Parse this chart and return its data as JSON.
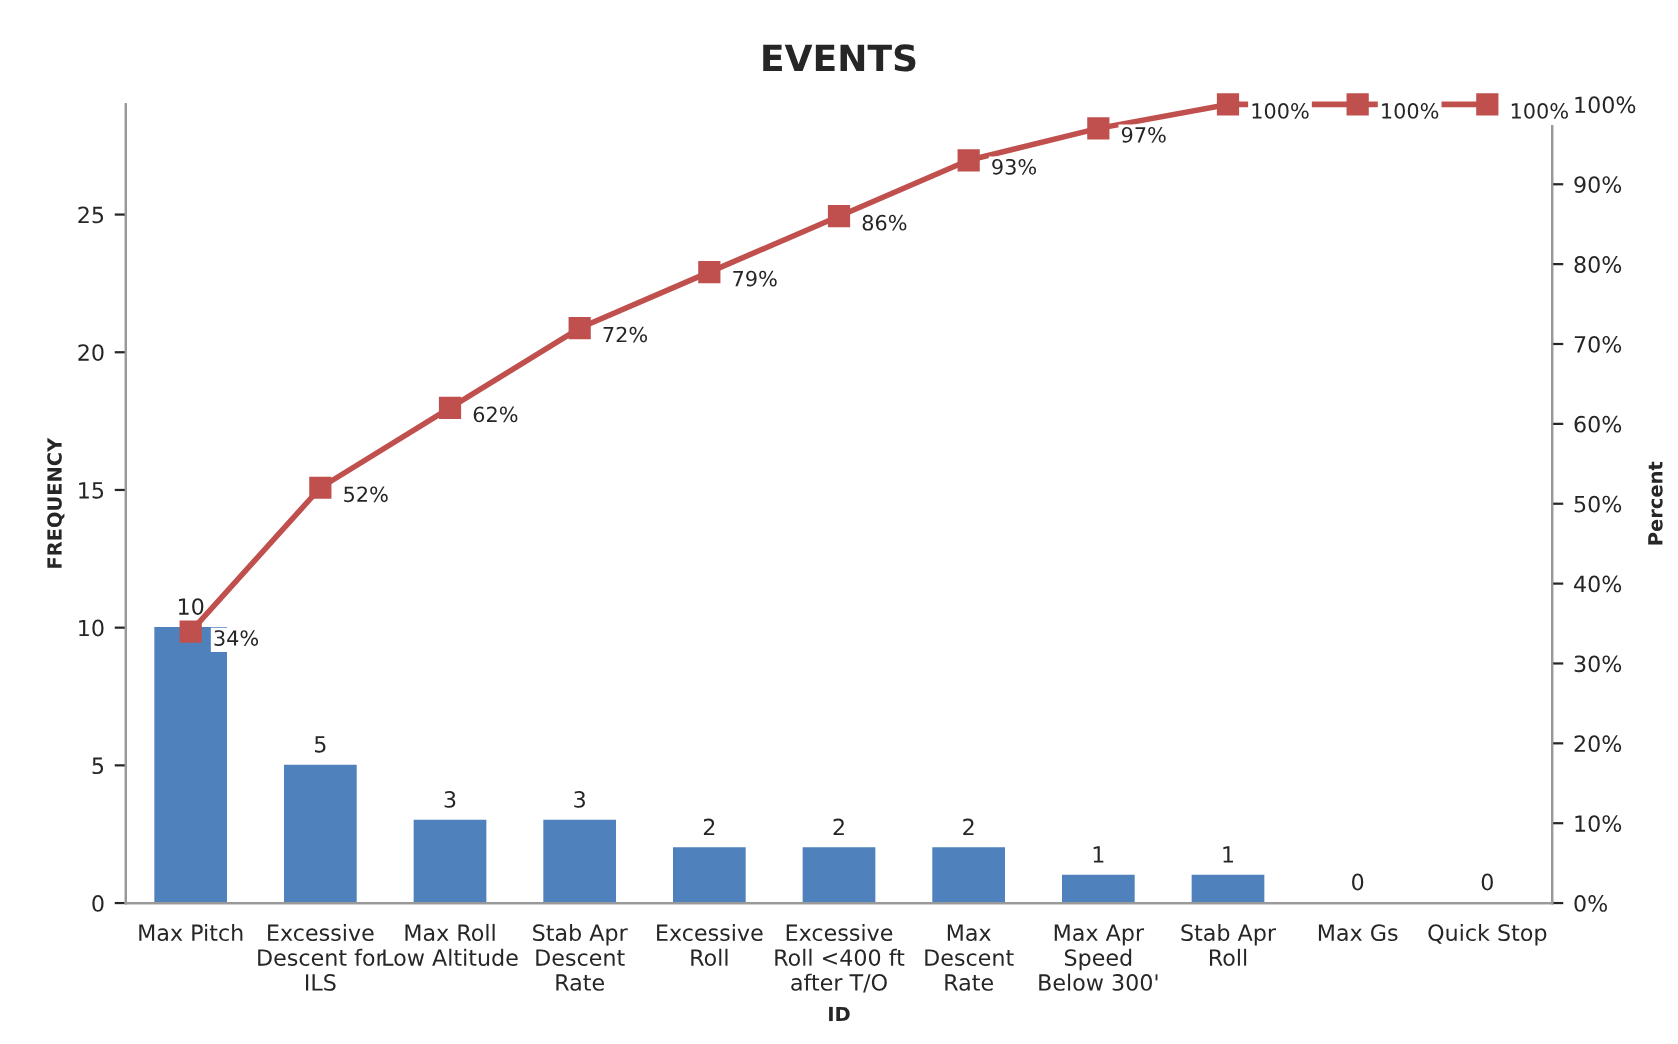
{
  "chart_data": {
    "type": "bar",
    "title": "EVENTS",
    "xlabel": "ID",
    "ylabel": "FREQUENCY",
    "y2label": "Percent",
    "categories": [
      "Max Pitch",
      "Excessive\nDescent for\nILS",
      "Max Roll\nLow Altitude",
      "Stab Apr\nDescent\nRate",
      "Excessive\nRoll",
      "Excessive\nRoll <400 ft\nafter T/O",
      "Max\nDescent\nRate",
      "Max Apr\nSpeed\nBelow 300'",
      "Stab Apr\nRoll",
      "Max Gs",
      "Quick Stop"
    ],
    "series": [
      {
        "color": "#4f81bd",
        "values": [
          10,
          5,
          3,
          3,
          2,
          2,
          2,
          1,
          1,
          0,
          0
        ],
        "value_labels": [
          "10",
          "5",
          "3",
          "3",
          "2",
          "2",
          "2",
          "1",
          "1",
          "0",
          "0"
        ]
      },
      {
        "type": "line",
        "axis": "y2",
        "color": "#c0504d",
        "marker": "square",
        "values": [
          34,
          52,
          62,
          72,
          79,
          86,
          93,
          97,
          100,
          100,
          100
        ],
        "value_labels": [
          "34%",
          "52%",
          "62%",
          "72%",
          "79%",
          "86%",
          "93%",
          "97%",
          "100%",
          "100%",
          "100%"
        ]
      }
    ],
    "ylim": [
      0,
      29
    ],
    "yticks": [
      0,
      5,
      10,
      15,
      20,
      25
    ],
    "y2lim": [
      0,
      100
    ],
    "y2ticks": [
      {
        "value": 0,
        "label": "0%"
      },
      {
        "value": 10,
        "label": "10%"
      },
      {
        "value": 20,
        "label": "20%"
      },
      {
        "value": 30,
        "label": "30%"
      },
      {
        "value": 40,
        "label": "40%"
      },
      {
        "value": 50,
        "label": "50%"
      },
      {
        "value": 60,
        "label": "60%"
      },
      {
        "value": 70,
        "label": "70%"
      },
      {
        "value": 80,
        "label": "80%"
      },
      {
        "value": 90,
        "label": "90%"
      },
      {
        "value": 100,
        "label": "100%"
      }
    ],
    "grid": false,
    "legend": false
  }
}
